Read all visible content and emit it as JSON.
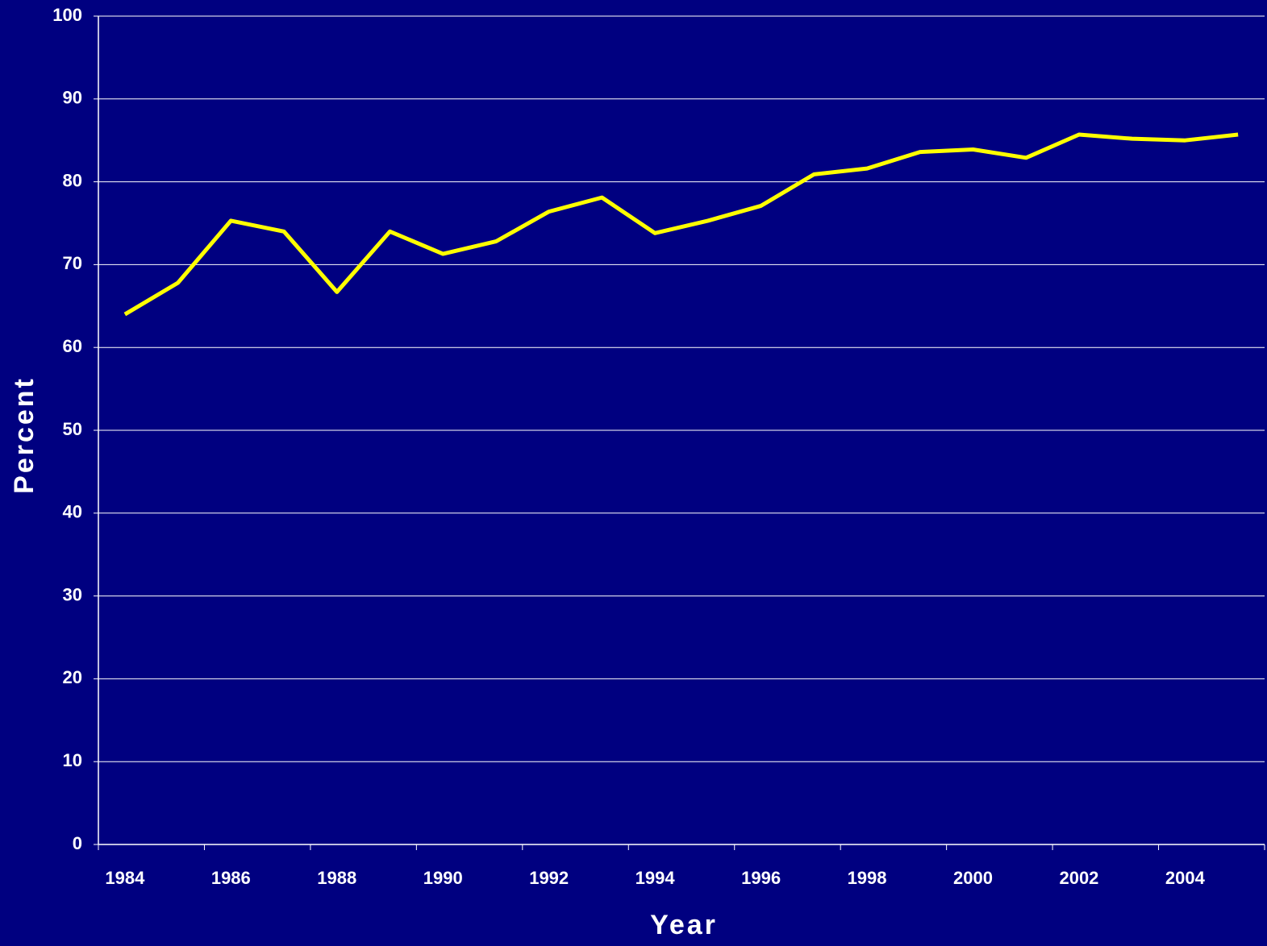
{
  "chart_data": {
    "type": "line",
    "xlabel": "Year",
    "ylabel": "Percent",
    "categories": [
      "1984",
      null,
      "1986",
      null,
      "1988",
      null,
      "1990",
      null,
      "1992",
      null,
      "1994",
      null,
      "1996",
      null,
      "1998",
      null,
      "2000",
      null,
      "2002",
      null,
      "2004",
      null
    ],
    "series": [
      {
        "color": "#ffff00",
        "values": [
          64.0,
          67.8,
          75.3,
          74.0,
          66.7,
          74.0,
          71.3,
          72.8,
          76.4,
          78.1,
          73.8,
          75.3,
          77.1,
          80.9,
          81.6,
          83.6,
          83.9,
          82.9,
          85.7,
          85.2,
          85.0,
          85.7
        ]
      }
    ],
    "ylim": [
      0,
      100
    ],
    "yticks": [
      0,
      10,
      20,
      30,
      40,
      50,
      60,
      70,
      80,
      90,
      100
    ],
    "grid": true
  }
}
